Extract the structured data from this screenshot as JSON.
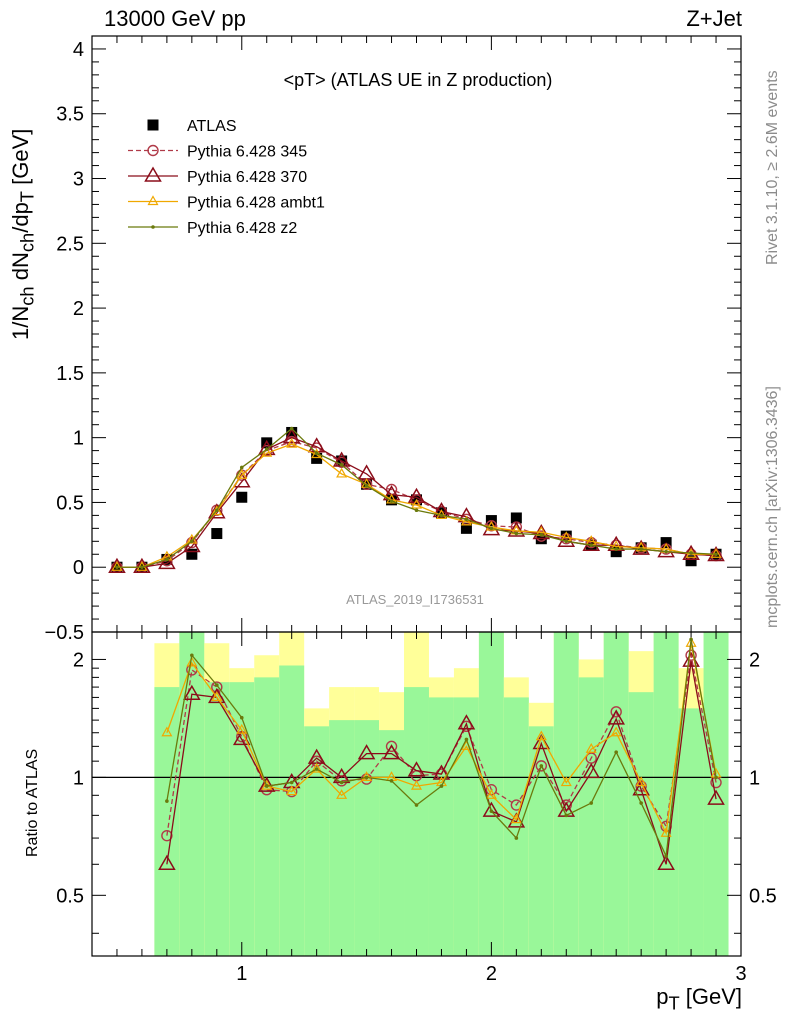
{
  "header": {
    "left": "13000 GeV pp",
    "right": "Z+Jet"
  },
  "side_labels": {
    "top": "Rivet 3.1.10, ≥ 2.6M events",
    "bottom": "mcplots.cern.ch [arXiv:1306.3436]"
  },
  "axis_labels": {
    "y_main": "1/N_ch dN_ch/dp_T [GeV]",
    "y_ratio": "Ratio to ATLAS",
    "x": "p_T [GeV]"
  },
  "plot_title": "<pT> (ATLAS UE in Z production)",
  "watermark": "ATLAS_2019_I1736531",
  "colors": {
    "ATLAS": "#000000",
    "p345": "#b03a48",
    "p370": "#8b0d1a",
    "ambt1": "#f0a800",
    "z2": "#6b7a0c",
    "band_green": "#99f799",
    "band_yellow": "#ffff99"
  },
  "chart_data": [
    {
      "type": "scatter",
      "panel": "main",
      "xlim": [
        0.4,
        3.0
      ],
      "ylim": [
        -0.5,
        4.1
      ],
      "xticks": [
        1,
        2,
        3
      ],
      "yticks": [
        -0.5,
        0,
        0.5,
        1,
        1.5,
        2,
        2.5,
        3,
        3.5,
        4
      ],
      "legend_position": "top-left",
      "x": [
        0.5,
        0.6,
        0.7,
        0.8,
        0.9,
        1.0,
        1.1,
        1.2,
        1.3,
        1.4,
        1.5,
        1.6,
        1.7,
        1.8,
        1.9,
        2.0,
        2.1,
        2.2,
        2.3,
        2.4,
        2.5,
        2.6,
        2.7,
        2.8,
        2.9
      ],
      "series": [
        {
          "name": "ATLAS",
          "key": "ATLAS",
          "marker": "square",
          "values": [
            0.0,
            0.0,
            0.06,
            0.1,
            0.26,
            0.54,
            0.96,
            1.04,
            0.84,
            0.82,
            0.64,
            0.52,
            0.52,
            0.42,
            0.3,
            0.36,
            0.38,
            0.22,
            0.24,
            0.17,
            0.12,
            0.15,
            0.19,
            0.05,
            0.1
          ]
        },
        {
          "name": "Pythia 6.428 345",
          "key": "p345",
          "marker": "circle",
          "dashed": true,
          "values": [
            0.0,
            0.0,
            0.05,
            0.19,
            0.44,
            0.71,
            0.9,
            0.97,
            0.92,
            0.81,
            0.64,
            0.6,
            0.52,
            0.43,
            0.37,
            0.32,
            0.31,
            0.24,
            0.22,
            0.19,
            0.17,
            0.15,
            0.14,
            0.1,
            0.09
          ]
        },
        {
          "name": "Pythia 6.428 370",
          "key": "p370",
          "marker": "triangle",
          "values": [
            0.0,
            0.0,
            0.03,
            0.16,
            0.42,
            0.66,
            0.91,
            1.0,
            0.93,
            0.82,
            0.72,
            0.56,
            0.54,
            0.43,
            0.39,
            0.29,
            0.28,
            0.26,
            0.2,
            0.17,
            0.17,
            0.14,
            0.12,
            0.1,
            0.09
          ]
        },
        {
          "name": "Pythia 6.428 ambt1",
          "key": "ambt1",
          "marker": "triangle-small",
          "values": [
            0.0,
            0.0,
            0.08,
            0.21,
            0.43,
            0.71,
            0.88,
            0.95,
            0.87,
            0.72,
            0.64,
            0.52,
            0.48,
            0.4,
            0.35,
            0.31,
            0.28,
            0.27,
            0.23,
            0.2,
            0.16,
            0.15,
            0.14,
            0.1,
            0.1
          ]
        },
        {
          "name": "Pythia 6.428 z2",
          "key": "z2",
          "marker": "dot",
          "values": [
            0.0,
            0.0,
            0.06,
            0.2,
            0.44,
            0.77,
            0.91,
            1.07,
            0.88,
            0.79,
            0.63,
            0.51,
            0.44,
            0.4,
            0.37,
            0.3,
            0.26,
            0.25,
            0.2,
            0.17,
            0.14,
            0.14,
            0.12,
            0.11,
            0.1
          ]
        }
      ]
    },
    {
      "type": "line",
      "panel": "ratio",
      "xlim": [
        0.4,
        3.0
      ],
      "ylim": [
        0.35,
        2.35
      ],
      "y_scale": "log",
      "yticks": [
        0.5,
        1,
        2
      ],
      "xticks": [
        1,
        2,
        3
      ],
      "reference_line": 1,
      "band_edges": [
        0.65,
        0.75,
        0.85,
        0.95,
        1.05,
        1.15,
        1.25,
        1.35,
        1.45,
        1.55,
        1.65,
        1.75,
        1.85,
        1.95,
        2.05,
        2.15,
        2.25,
        2.35,
        2.45,
        2.55,
        2.65,
        2.75,
        2.85,
        2.95
      ],
      "band_green": [
        [
          0.35,
          1.7
        ],
        [
          0.35,
          2.35
        ],
        [
          0.35,
          1.75
        ],
        [
          0.35,
          1.75
        ],
        [
          0.35,
          1.8
        ],
        [
          0.35,
          1.93
        ],
        [
          0.35,
          1.35
        ],
        [
          0.35,
          1.4
        ],
        [
          0.35,
          1.4
        ],
        [
          0.35,
          1.32
        ],
        [
          0.35,
          1.7
        ],
        [
          0.35,
          1.6
        ],
        [
          0.35,
          1.6
        ],
        [
          0.35,
          2.35
        ],
        [
          0.35,
          1.6
        ],
        [
          0.35,
          1.35
        ],
        [
          0.35,
          2.35
        ],
        [
          0.35,
          1.8
        ],
        [
          0.35,
          2.35
        ],
        [
          0.35,
          1.65
        ],
        [
          0.35,
          2.35
        ],
        [
          0.35,
          1.5
        ],
        [
          0.35,
          2.35
        ],
        [
          0.35,
          1.37
        ]
      ],
      "band_yellow": [
        [
          0.35,
          2.2
        ],
        [
          0.35,
          2.35
        ],
        [
          0.35,
          2.2
        ],
        [
          0.35,
          1.9
        ],
        [
          0.35,
          2.05
        ],
        [
          0.35,
          2.35
        ],
        [
          0.35,
          1.5
        ],
        [
          0.35,
          1.7
        ],
        [
          0.35,
          1.7
        ],
        [
          0.35,
          1.65
        ],
        [
          0.35,
          2.35
        ],
        [
          0.35,
          1.8
        ],
        [
          0.35,
          1.9
        ],
        [
          0.35,
          2.35
        ],
        [
          0.35,
          1.8
        ],
        [
          0.35,
          1.55
        ],
        [
          0.35,
          2.35
        ],
        [
          0.35,
          2.0
        ],
        [
          0.35,
          2.35
        ],
        [
          0.35,
          2.1
        ],
        [
          0.35,
          2.35
        ],
        [
          0.35,
          1.9
        ],
        [
          0.35,
          2.35
        ],
        [
          0.35,
          1.95
        ]
      ],
      "band_holes": [
        [
          0.72,
          0.82,
          0.88
        ],
        [
          0.72,
          0.82,
          0.88
        ],
        [
          0.83,
          0.58,
          0.68
        ],
        [
          0.68,
          0.6,
          0.65
        ],
        [
          0.7,
          0.4,
          0.44
        ],
        [
          0.58,
          0.65,
          0.62
        ],
        [
          0.7,
          0.5,
          0.5
        ],
        [
          0.52,
          0.6,
          0.75
        ],
        [
          0.52,
          0.76,
          0.56
        ],
        [
          0.53,
          0.52,
          0.52
        ],
        [
          0.5,
          0.56,
          0.52
        ],
        [
          0.52,
          0.5,
          0.52
        ],
        [
          0.5,
          0.5,
          0.5
        ],
        [
          0.5,
          0.5,
          0.5
        ],
        [
          0.5,
          0.5,
          0.5
        ],
        [
          0.5,
          0.5,
          0.5
        ],
        [
          0.5,
          0.5,
          0.5
        ],
        [
          0.5,
          0.5,
          0.5
        ],
        [
          0.5,
          0.5,
          0.5
        ],
        [
          0.5,
          0.5,
          0.5
        ],
        [
          0.5,
          0.5,
          0.5
        ],
        [
          0.5,
          0.5,
          0.5
        ],
        [
          0.5,
          0.5,
          0.5
        ],
        [
          0.5,
          0.5,
          0.5
        ]
      ],
      "x": [
        0.7,
        0.8,
        0.9,
        1.0,
        1.1,
        1.2,
        1.3,
        1.4,
        1.5,
        1.6,
        1.7,
        1.8,
        1.9,
        2.0,
        2.1,
        2.2,
        2.3,
        2.4,
        2.5,
        2.6,
        2.7,
        2.8,
        2.9
      ],
      "series": [
        {
          "name": "Pythia 6.428 345",
          "key": "p345",
          "marker": "circle",
          "dashed": true,
          "values": [
            0.71,
            1.88,
            1.7,
            1.27,
            0.93,
            0.92,
            1.1,
            0.98,
            0.99,
            1.2,
            1.01,
            1.02,
            1.35,
            0.93,
            0.85,
            1.07,
            0.85,
            1.12,
            1.47,
            0.95,
            0.75,
            2.05,
            0.97
          ]
        },
        {
          "name": "Pythia 6.428 370",
          "key": "p370",
          "marker": "triangle",
          "values": [
            0.6,
            1.63,
            1.6,
            1.25,
            0.95,
            0.97,
            1.12,
            1.0,
            1.15,
            1.15,
            1.04,
            1.02,
            1.37,
            0.82,
            0.77,
            1.22,
            0.82,
            1.03,
            1.41,
            0.93,
            0.6,
            1.98,
            0.88
          ]
        },
        {
          "name": "Pythia 6.428 ambt1",
          "key": "ambt1",
          "marker": "triangle-small",
          "values": [
            1.3,
            1.96,
            1.6,
            1.32,
            0.95,
            0.92,
            1.05,
            0.9,
            1.0,
            1.0,
            0.95,
            0.97,
            1.2,
            0.9,
            0.78,
            1.27,
            0.97,
            1.18,
            1.3,
            0.97,
            0.72,
            2.2,
            1.02
          ]
        },
        {
          "name": "Pythia 6.428 z2",
          "key": "z2",
          "marker": "dot",
          "values": [
            0.87,
            2.05,
            1.72,
            1.42,
            0.95,
            0.97,
            1.05,
            0.97,
            1.0,
            0.98,
            0.85,
            0.95,
            1.25,
            0.82,
            0.7,
            1.07,
            0.8,
            0.86,
            1.16,
            0.86,
            0.63,
            2.25,
            1.0
          ]
        }
      ]
    }
  ]
}
